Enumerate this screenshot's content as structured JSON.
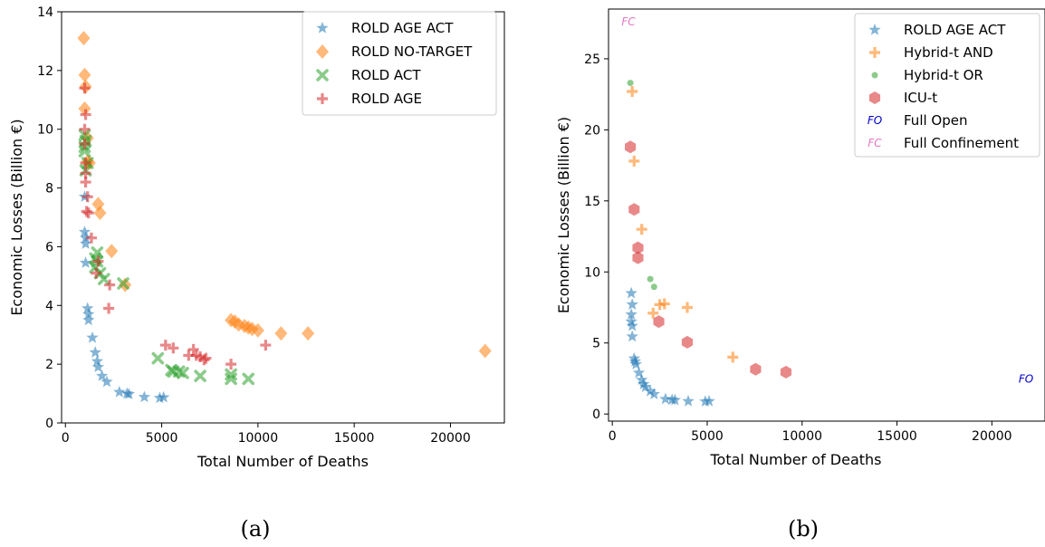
{
  "colors": {
    "blue": "#1f77b4",
    "orange": "#ff7f0e",
    "green": "#2ca02c",
    "red": "#d62728",
    "fo": "#0000cc",
    "fc": "#e377c2"
  },
  "chart_data": [
    {
      "type": "scatter",
      "caption": "(a)",
      "xlabel": "Total Number of Deaths",
      "ylabel": "Economic Losses (Billion €)",
      "xlim": [
        -200,
        22800
      ],
      "ylim": [
        0,
        14
      ],
      "xticks": [
        0,
        5000,
        10000,
        15000,
        20000
      ],
      "yticks": [
        0,
        2,
        4,
        6,
        8,
        10,
        12,
        14
      ],
      "grid": false,
      "legend_position": "top-right",
      "series": [
        {
          "name": "ROLD AGE ACT",
          "marker": "star",
          "color": "#1f77b4",
          "points": [
            [
              1000,
              7.7
            ],
            [
              1000,
              6.5
            ],
            [
              1050,
              6.3
            ],
            [
              1050,
              6.1
            ],
            [
              1050,
              5.45
            ],
            [
              1150,
              3.9
            ],
            [
              1200,
              3.7
            ],
            [
              1200,
              3.5
            ],
            [
              1400,
              2.9
            ],
            [
              1550,
              2.4
            ],
            [
              1650,
              2.1
            ],
            [
              1700,
              1.9
            ],
            [
              1900,
              1.6
            ],
            [
              2150,
              1.4
            ],
            [
              2800,
              1.05
            ],
            [
              3200,
              1.0
            ],
            [
              3300,
              0.98
            ],
            [
              4100,
              0.88
            ],
            [
              4900,
              0.85
            ],
            [
              5100,
              0.87
            ]
          ]
        },
        {
          "name": "ROLD NO-TARGET",
          "marker": "diamond",
          "color": "#ff7f0e",
          "points": [
            [
              950,
              13.1
            ],
            [
              1000,
              11.85
            ],
            [
              1050,
              11.45
            ],
            [
              1000,
              10.7
            ],
            [
              1150,
              9.7
            ],
            [
              1150,
              8.9
            ],
            [
              1250,
              8.85
            ],
            [
              1700,
              7.45
            ],
            [
              1800,
              7.15
            ],
            [
              2400,
              5.85
            ],
            [
              3100,
              4.7
            ],
            [
              8600,
              3.5
            ],
            [
              8800,
              3.45
            ],
            [
              9000,
              3.35
            ],
            [
              9300,
              3.3
            ],
            [
              9500,
              3.25
            ],
            [
              9700,
              3.2
            ],
            [
              10000,
              3.15
            ],
            [
              11200,
              3.05
            ],
            [
              12600,
              3.05
            ],
            [
              21800,
              2.45
            ]
          ]
        },
        {
          "name": "ROLD ACT",
          "marker": "x",
          "color": "#2ca02c",
          "points": [
            [
              1000,
              9.8
            ],
            [
              1050,
              9.6
            ],
            [
              1000,
              9.4
            ],
            [
              1000,
              9.25
            ],
            [
              1150,
              8.85
            ],
            [
              1050,
              8.6
            ],
            [
              1650,
              5.8
            ],
            [
              1550,
              5.6
            ],
            [
              1650,
              5.5
            ],
            [
              1550,
              5.3
            ],
            [
              1800,
              5.1
            ],
            [
              2000,
              4.9
            ],
            [
              3000,
              4.75
            ],
            [
              4800,
              2.2
            ],
            [
              5500,
              1.8
            ],
            [
              5600,
              1.75
            ],
            [
              5900,
              1.75
            ],
            [
              6100,
              1.7
            ],
            [
              7000,
              1.6
            ],
            [
              8600,
              1.65
            ],
            [
              8600,
              1.5
            ],
            [
              9500,
              1.5
            ]
          ]
        },
        {
          "name": "ROLD AGE",
          "marker": "plus",
          "color": "#d62728",
          "points": [
            [
              1000,
              11.4
            ],
            [
              1050,
              10.5
            ],
            [
              1000,
              10.0
            ],
            [
              1000,
              9.5
            ],
            [
              1050,
              8.85
            ],
            [
              1050,
              8.5
            ],
            [
              1050,
              8.2
            ],
            [
              1150,
              7.7
            ],
            [
              1100,
              7.2
            ],
            [
              1200,
              7.15
            ],
            [
              1350,
              6.3
            ],
            [
              1600,
              5.1
            ],
            [
              1700,
              5.5
            ],
            [
              2300,
              4.7
            ],
            [
              2250,
              3.9
            ],
            [
              5200,
              2.65
            ],
            [
              5600,
              2.55
            ],
            [
              6400,
              2.3
            ],
            [
              6650,
              2.5
            ],
            [
              6800,
              2.3
            ],
            [
              7000,
              2.25
            ],
            [
              7300,
              2.2
            ],
            [
              7200,
              2.15
            ],
            [
              8600,
              2.0
            ],
            [
              10400,
              2.65
            ]
          ]
        }
      ]
    },
    {
      "type": "scatter",
      "caption": "(b)",
      "xlabel": "Total Number of Deaths",
      "ylabel": "Economic Losses (Billion €)",
      "xlim": [
        -200,
        22800
      ],
      "ylim": [
        -0.5,
        28.5
      ],
      "xticks": [
        0,
        5000,
        10000,
        15000,
        20000
      ],
      "yticks": [
        0,
        5,
        10,
        15,
        20,
        25
      ],
      "grid": false,
      "legend_position": "top-right",
      "series": [
        {
          "name": "ROLD AGE ACT",
          "marker": "star",
          "color": "#1f77b4",
          "points": [
            [
              1000,
              8.5
            ],
            [
              1050,
              7.7
            ],
            [
              1000,
              7.0
            ],
            [
              1000,
              6.5
            ],
            [
              1050,
              6.2
            ],
            [
              1050,
              5.45
            ],
            [
              1150,
              3.9
            ],
            [
              1200,
              3.7
            ],
            [
              1250,
              3.5
            ],
            [
              1400,
              2.9
            ],
            [
              1550,
              2.4
            ],
            [
              1650,
              2.1
            ],
            [
              1750,
              1.9
            ],
            [
              2000,
              1.6
            ],
            [
              2200,
              1.4
            ],
            [
              2800,
              1.05
            ],
            [
              3150,
              1.0
            ],
            [
              3300,
              0.98
            ],
            [
              4000,
              0.9
            ],
            [
              4900,
              0.88
            ],
            [
              5100,
              0.9
            ]
          ]
        },
        {
          "name": "Hybrid-t AND",
          "marker": "plus",
          "color": "#ff7f0e",
          "points": [
            [
              1050,
              22.7
            ],
            [
              1150,
              17.8
            ],
            [
              1550,
              13.0
            ],
            [
              2150,
              7.1
            ],
            [
              2500,
              7.7
            ],
            [
              2750,
              7.75
            ],
            [
              3950,
              7.5
            ],
            [
              6350,
              4.0
            ]
          ]
        },
        {
          "name": "Hybrid-t OR",
          "marker": "dot",
          "color": "#2ca02c",
          "points": [
            [
              950,
              23.3
            ],
            [
              2000,
              9.5
            ],
            [
              2200,
              8.95
            ]
          ]
        },
        {
          "name": "ICU-t",
          "marker": "hexagon",
          "color": "#d62728",
          "points": [
            [
              950,
              18.8
            ],
            [
              1150,
              14.4
            ],
            [
              1350,
              11.7
            ],
            [
              1350,
              11.0
            ],
            [
              2450,
              6.5
            ],
            [
              3950,
              5.05
            ],
            [
              7550,
              3.15
            ],
            [
              9150,
              2.95
            ]
          ]
        },
        {
          "name": "Full Open",
          "marker": "text",
          "label": "FO",
          "color": "#0000cc",
          "points": [
            [
              21800,
              2.45
            ]
          ]
        },
        {
          "name": "Full Confinement",
          "marker": "text",
          "label": "FC",
          "color": "#e377c2",
          "points": [
            [
              850,
              27.6
            ]
          ]
        }
      ]
    }
  ]
}
